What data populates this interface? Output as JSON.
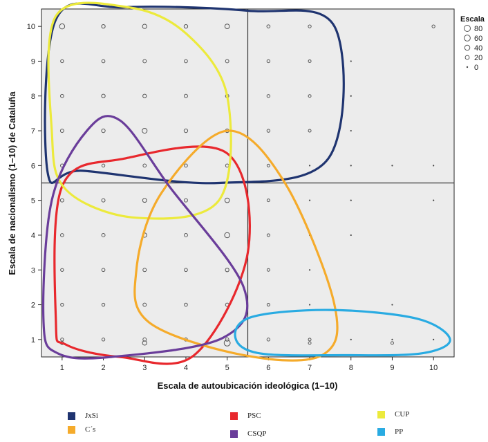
{
  "chart_data": {
    "type": "scatter",
    "xlabel": "Escala de autoubicación ideológica (1–10)",
    "ylabel": "Escala de nacionalismo (1–10) de Cataluña",
    "xlim": [
      0.5,
      10.5
    ],
    "ylim": [
      0.5,
      10.5
    ],
    "x_ticks": [
      1,
      2,
      3,
      4,
      5,
      6,
      7,
      8,
      9,
      10
    ],
    "y_ticks": [
      1,
      2,
      3,
      4,
      5,
      6,
      7,
      8,
      9,
      10
    ],
    "reference_lines": {
      "x": 5.5,
      "y": 5.5
    },
    "size_legend": {
      "title": "Escala",
      "labels": [
        "80",
        "60",
        "40",
        "20",
        "0"
      ],
      "sizes": [
        80,
        60,
        40,
        20,
        0
      ]
    },
    "points": [
      [
        1,
        10,
        40
      ],
      [
        2,
        10,
        15
      ],
      [
        3,
        10,
        25
      ],
      [
        4,
        10,
        15
      ],
      [
        5,
        10,
        30
      ],
      [
        6,
        10,
        10
      ],
      [
        7,
        10,
        8
      ],
      [
        10,
        10,
        8
      ],
      [
        1,
        9,
        8
      ],
      [
        2,
        9,
        10
      ],
      [
        3,
        9,
        12
      ],
      [
        4,
        9,
        10
      ],
      [
        5,
        9,
        12
      ],
      [
        6,
        9,
        8
      ],
      [
        7,
        9,
        6
      ],
      [
        8,
        9,
        4
      ],
      [
        1,
        8,
        10
      ],
      [
        2,
        8,
        15
      ],
      [
        3,
        8,
        15
      ],
      [
        4,
        8,
        12
      ],
      [
        5,
        8,
        12
      ],
      [
        6,
        8,
        8
      ],
      [
        7,
        8,
        6
      ],
      [
        8,
        8,
        4
      ],
      [
        1,
        7,
        12
      ],
      [
        2,
        7,
        15
      ],
      [
        3,
        7,
        35
      ],
      [
        4,
        7,
        15
      ],
      [
        5,
        7,
        15
      ],
      [
        6,
        7,
        8
      ],
      [
        7,
        7,
        6
      ],
      [
        8,
        7,
        4
      ],
      [
        1,
        6,
        10
      ],
      [
        2,
        6,
        8
      ],
      [
        3,
        6,
        10
      ],
      [
        4,
        6,
        10
      ],
      [
        5,
        6,
        10
      ],
      [
        6,
        6,
        6
      ],
      [
        7,
        6,
        4
      ],
      [
        8,
        6,
        4
      ],
      [
        9,
        6,
        4
      ],
      [
        10,
        6,
        4
      ],
      [
        1,
        5,
        12
      ],
      [
        2,
        5,
        12
      ],
      [
        3,
        5,
        20
      ],
      [
        4,
        5,
        12
      ],
      [
        5,
        5,
        30
      ],
      [
        6,
        5,
        6
      ],
      [
        7,
        5,
        4
      ],
      [
        8,
        5,
        4
      ],
      [
        10,
        5,
        4
      ],
      [
        1,
        4,
        10
      ],
      [
        2,
        4,
        12
      ],
      [
        3,
        4,
        25
      ],
      [
        4,
        4,
        12
      ],
      [
        5,
        4,
        40
      ],
      [
        6,
        4,
        6
      ],
      [
        7,
        4,
        4
      ],
      [
        8,
        4,
        4
      ],
      [
        1,
        3,
        8
      ],
      [
        2,
        3,
        10
      ],
      [
        3,
        3,
        12
      ],
      [
        4,
        3,
        10
      ],
      [
        5,
        3,
        15
      ],
      [
        6,
        3,
        6
      ],
      [
        7,
        3,
        4
      ],
      [
        1,
        2,
        8
      ],
      [
        2,
        2,
        8
      ],
      [
        3,
        2,
        12
      ],
      [
        4,
        2,
        10
      ],
      [
        5,
        2,
        12
      ],
      [
        6,
        2,
        6
      ],
      [
        7,
        2,
        4
      ],
      [
        9,
        2,
        4
      ],
      [
        1,
        1,
        8
      ],
      [
        2,
        1,
        8
      ],
      [
        3,
        1,
        12
      ],
      [
        4,
        1,
        10
      ],
      [
        5,
        1,
        12
      ],
      [
        6,
        1,
        8
      ],
      [
        7,
        1,
        6
      ],
      [
        8,
        1,
        4
      ],
      [
        9,
        1,
        4
      ],
      [
        10,
        1,
        4
      ],
      [
        1,
        0.9,
        10
      ],
      [
        3,
        0.9,
        25
      ],
      [
        5,
        0.9,
        60
      ],
      [
        7,
        0.9,
        6
      ],
      [
        9,
        0.9,
        6
      ]
    ],
    "ellipses": [
      {
        "name": "JxSi",
        "color": "#1f3470"
      },
      {
        "name": "PSC",
        "color": "#e8282d"
      },
      {
        "name": "CUP",
        "color": "#ecea3c"
      },
      {
        "name": "C´s",
        "color": "#f5ab2b"
      },
      {
        "name": "CSQP",
        "color": "#6a3d9a"
      },
      {
        "name": "PP",
        "color": "#29abe2"
      }
    ]
  },
  "legend": [
    {
      "label": "JxSi",
      "color": "#1f3470"
    },
    {
      "label": "PSC",
      "color": "#e8282d"
    },
    {
      "label": "CUP",
      "color": "#ecea3c"
    },
    {
      "label": "C´s",
      "color": "#f5ab2b"
    },
    {
      "label": "CSQP",
      "color": "#6a3d9a"
    },
    {
      "label": "PP",
      "color": "#29abe2"
    }
  ]
}
